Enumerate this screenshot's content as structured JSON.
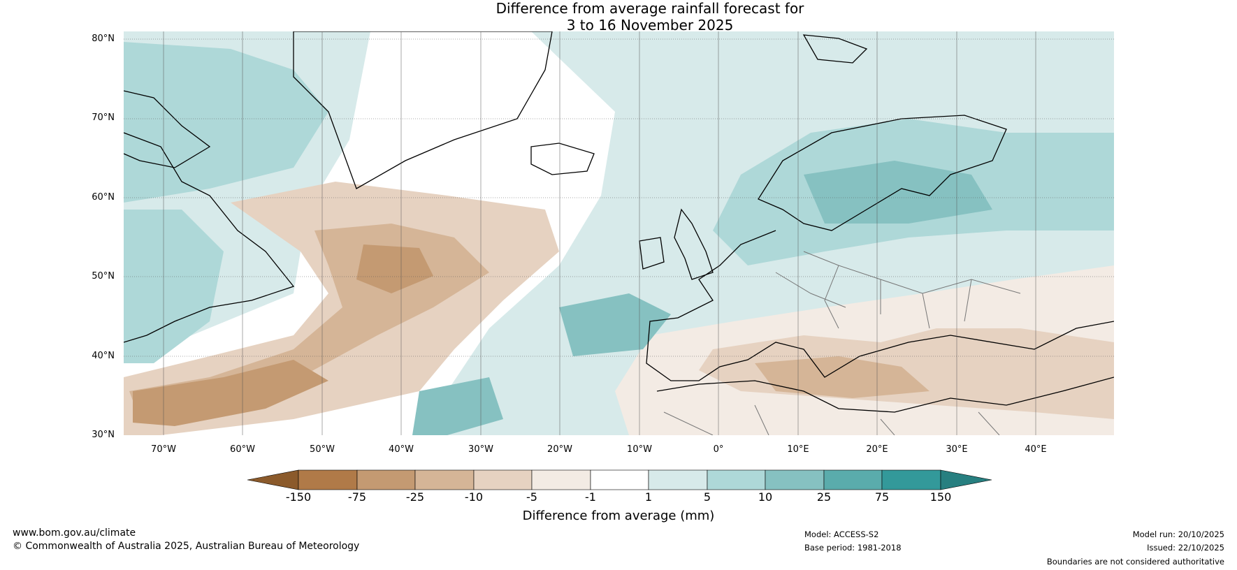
{
  "title_line1": "Difference from average rainfall forecast for",
  "title_line2": "3 to 16 November 2025",
  "map": {
    "lat_labels": [
      "80°N",
      "70°N",
      "60°N",
      "50°N",
      "40°N",
      "30°N"
    ],
    "lon_labels": [
      "70°W",
      "60°W",
      "50°W",
      "40°W",
      "30°W",
      "20°W",
      "10°W",
      "0°",
      "10°E",
      "20°E",
      "30°E",
      "40°E"
    ],
    "lat_range": [
      30,
      80
    ],
    "lon_range": [
      -75,
      50
    ]
  },
  "colorbar": {
    "title": "Difference from average (mm)",
    "tick_labels": [
      "-150",
      "-75",
      "-25",
      "-10",
      "-5",
      "-1",
      "1",
      "5",
      "10",
      "25",
      "75",
      "150"
    ],
    "colors": [
      "#8b5a2b",
      "#b07a48",
      "#c49a72",
      "#d5b597",
      "#e6d2c1",
      "#f3ebe4",
      "#ffffff",
      "#d7eaea",
      "#aed8d8",
      "#86c1c1",
      "#5aacac",
      "#33999a",
      "#277f80"
    ]
  },
  "footer": {
    "website": "www.bom.gov.au/climate",
    "copyright": "© Commonwealth of Australia 2025, Australian Bureau of Meteorology",
    "model": "Model: ACCESS-S2",
    "base_period": "Base period: 1981-2018",
    "model_run": "Model run: 20/10/2025",
    "issued": "Issued: 22/10/2025",
    "disclaimer": "Boundaries are not considered authoritative"
  }
}
